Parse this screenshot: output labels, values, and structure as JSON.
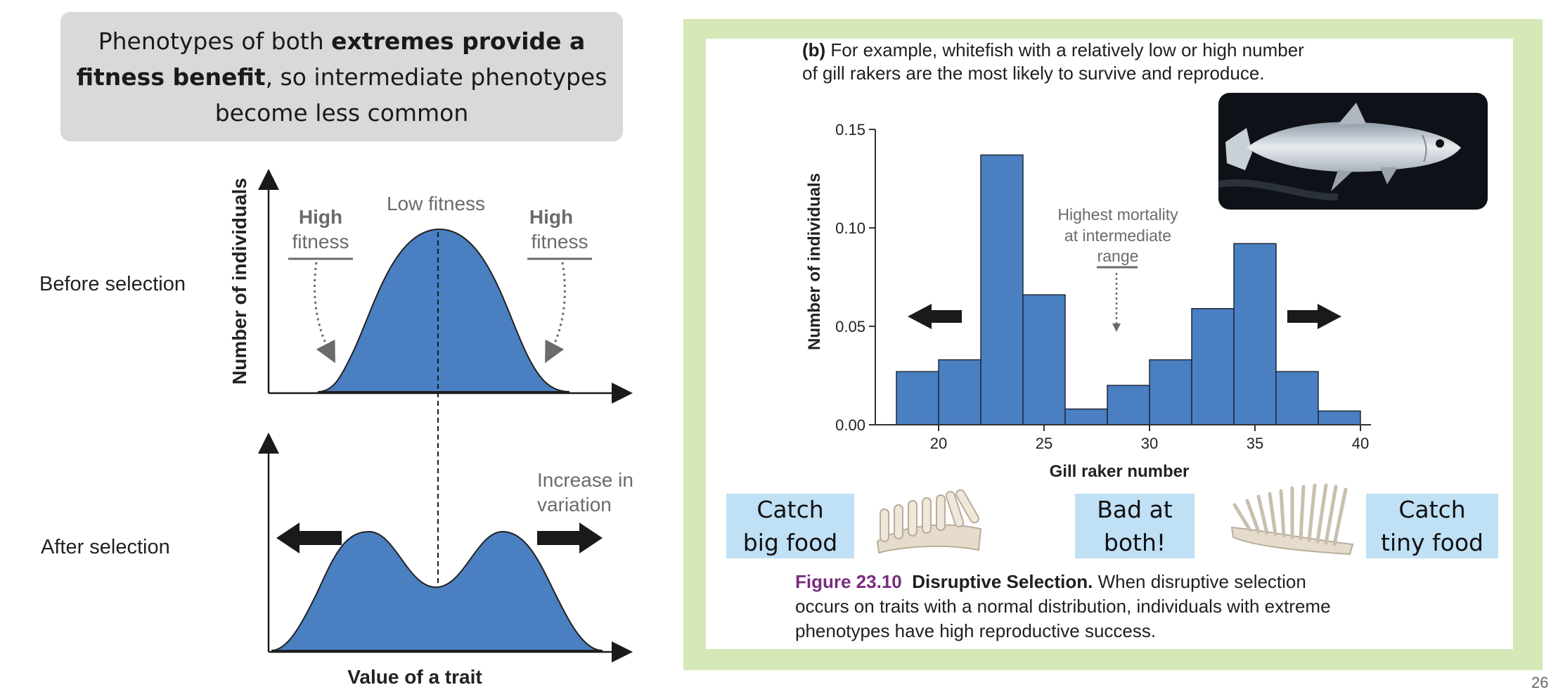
{
  "callout": {
    "line1_pre": "Phenotypes of both ",
    "line1_bold": "extremes provide a",
    "line2_bold": "fitness benefit",
    "line2_post": ", so intermediate phenotypes",
    "line3": "become less common"
  },
  "left_diagram": {
    "before_label": "Before selection",
    "after_label": "After selection",
    "y_axis_label": "Number of individuals",
    "x_axis_label": "Value of a trait",
    "low_fitness": "Low fitness",
    "high_fitness_left_bold": "High",
    "high_fitness_left": "fitness",
    "high_fitness_right_bold": "High",
    "high_fitness_right": "fitness",
    "increase_variation_1": "Increase in",
    "increase_variation_2": "variation",
    "colors": {
      "fill": "#4a7fc1",
      "arrow": "#1a1a1a",
      "annotation": "#6b6b6b"
    }
  },
  "panel": {
    "caption_bold": "(b)",
    "caption_line1": " For example, whitefish with a relatively low or high number",
    "caption_line2": "of gill rakers are the most likely to survive and reproduce.",
    "annotation_1": "Highest mortality",
    "annotation_2": "at intermediate",
    "annotation_3": "range",
    "box_left_1": "Catch",
    "box_left_2": "big food",
    "box_mid_1": "Bad at",
    "box_mid_2": "both!",
    "box_right_1": "Catch",
    "box_right_2": "tiny food",
    "figure_number": "Figure 23.10",
    "figure_title": "Disruptive Selection.",
    "figure_text_1": " When disruptive selection",
    "figure_text_2": "occurs on traits with a normal distribution, individuals with extreme",
    "figure_text_3": "phenotypes have high reproductive success.",
    "colors": {
      "frame": "#d6e7b8",
      "label_box": "#bfe0f5",
      "bar": "#4a7fc1"
    }
  },
  "chart_data": {
    "type": "bar",
    "xlabel": "Gill raker number",
    "ylabel": "Number of individuals",
    "xlim": [
      17,
      40.5
    ],
    "ylim": [
      0,
      0.15
    ],
    "xticks": [
      "20",
      "25",
      "30",
      "35",
      "40"
    ],
    "yticks": [
      "0.00",
      "0.05",
      "0.10",
      "0.15"
    ],
    "bin_width": 2,
    "bin_starts": [
      18,
      20,
      22,
      24,
      26,
      28,
      30,
      32,
      34,
      36,
      38
    ],
    "values": [
      0.027,
      0.033,
      0.137,
      0.066,
      0.008,
      0.02,
      0.033,
      0.059,
      0.092,
      0.027,
      0.007
    ]
  },
  "page_number": "26"
}
